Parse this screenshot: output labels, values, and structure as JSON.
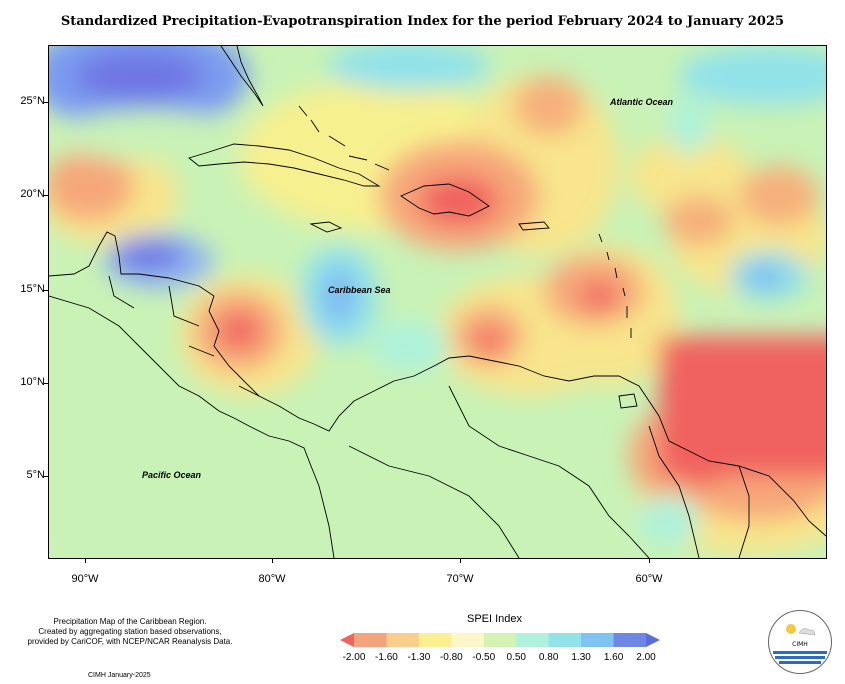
{
  "title": "Standardized Precipitation-Evapotranspiration Index for the period February 2024 to January 2025",
  "map": {
    "lat_ticks": [
      "25°N",
      "20°N",
      "15°N",
      "10°N",
      "5°N"
    ],
    "lon_ticks": [
      "90°W",
      "80°W",
      "70°W",
      "60°W"
    ],
    "labels": {
      "atlantic": "Atlantic Ocean",
      "caribbean": "Caribbean Sea",
      "pacific": "Pacific Ocean"
    }
  },
  "caption": {
    "line1": "Precipitation Map of the Caribbean Region.",
    "line2": "Created by aggregating station based observations,",
    "line3": "provided by CariCOF, with NCEP/NCAR Reanalysis Data.",
    "credit": "CIMH January-2025"
  },
  "legend": {
    "title": "SPEI Index",
    "labels": [
      "-2.00",
      "-1.60",
      "-1.30",
      "-0.80",
      "-0.50",
      "0.50",
      "0.80",
      "1.30",
      "1.60",
      "2.00"
    ],
    "colors": [
      "#f0625f",
      "#f5a37c",
      "#f8cf8a",
      "#fbf08f",
      "#fbf7c8",
      "#d4f3b3",
      "#aef2dc",
      "#92e2ea",
      "#7fc3f2",
      "#6f86e6",
      "#5a70d8"
    ]
  },
  "logo": {
    "text": "CIMH"
  }
}
